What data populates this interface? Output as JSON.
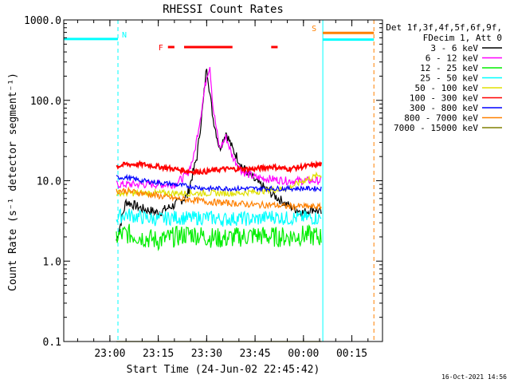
{
  "chart_data": {
    "type": "line",
    "title": "RHESSI Count Rates",
    "xlabel": "Start Time (24-Jun-02 22:45:42)",
    "ylabel": "Count Rate (s⁻¹ detector segment⁻¹)",
    "y_scale": "log",
    "ylim": [
      0.1,
      1000.0
    ],
    "yticks": [
      "0.1",
      "1.0",
      "10.0",
      "100.0",
      "1000.0"
    ],
    "xlim": [
      "22:45:42",
      "00:24:30"
    ],
    "xticks": [
      "23:00",
      "23:15",
      "23:30",
      "23:45",
      "00:00",
      "00:15"
    ],
    "timestamp": "16-Oct-2021 14:56",
    "legend": {
      "position": "right",
      "header_line1": "Det 1f,3f,4f,5f,6f,9f,",
      "header_line2": "FDecim 1, Att 0",
      "entries": [
        {
          "label": "3 - 6 keV",
          "color": "#000000"
        },
        {
          "label": "6 - 12 keV",
          "color": "#ff00ff"
        },
        {
          "label": "12 - 25 keV",
          "color": "#00ee00"
        },
        {
          "label": "25 - 50 keV",
          "color": "#00ffff"
        },
        {
          "label": "50 - 100 keV",
          "color": "#e0e000"
        },
        {
          "label": "100 - 300 keV",
          "color": "#ff0000"
        },
        {
          "label": "300 - 800 keV",
          "color": "#0000ff"
        },
        {
          "label": "800 - 7000 keV",
          "color": "#ff8000"
        },
        {
          "label": "7000 - 15000 keV",
          "color": "#808000"
        }
      ]
    },
    "annotations": [
      {
        "label": "N",
        "color": "#00ffff",
        "x_start": "22:45:42",
        "x_end": "23:02:30",
        "y": 580
      },
      {
        "label": "S",
        "color": "#ff8000",
        "x_start": "00:06:00",
        "x_end": "00:21:50",
        "y": 690
      },
      {
        "label": "",
        "color": "#00ffff",
        "x_start": "00:06:00",
        "x_end": "00:21:50",
        "y": 570
      },
      {
        "label": "F",
        "color": "#ff0000",
        "segments": [
          [
            "23:18:00",
            "23:20:00"
          ],
          [
            "23:23:00",
            "23:38:00"
          ],
          [
            "23:50:00",
            "23:52:00"
          ]
        ],
        "y": 460
      }
    ],
    "vertical_markers": [
      {
        "x": "23:02:30",
        "color": "#00ffff",
        "style": "dashed"
      },
      {
        "x": "00:06:00",
        "color": "#00ffff",
        "style": "solid"
      },
      {
        "x": "00:21:50",
        "color": "#ff8000",
        "style": "dashed"
      }
    ],
    "series": [
      {
        "name": "3 - 6 keV",
        "color": "#000000",
        "x": [
          "23:02:00",
          "23:05:00",
          "23:10:00",
          "23:15:00",
          "23:20:00",
          "23:24:00",
          "23:27:00",
          "23:29:00",
          "23:30:00",
          "23:31:00",
          "23:32:00",
          "23:34:00",
          "23:36:00",
          "23:38:00",
          "23:41:00",
          "23:45:00",
          "23:50:00",
          "23:55:00",
          "00:00:00",
          "00:03:00",
          "00:05:30"
        ],
        "y": [
          1.8,
          5.5,
          4.5,
          4.0,
          5.0,
          6.5,
          20,
          100,
          270,
          120,
          60,
          25,
          40,
          25,
          15,
          10,
          7,
          5,
          4,
          4.5,
          4
        ]
      },
      {
        "name": "6 - 12 keV",
        "color": "#ff00ff",
        "x": [
          "23:02:00",
          "23:10:00",
          "23:20:00",
          "23:24:00",
          "23:26:00",
          "23:28:00",
          "23:30:00",
          "23:31:00",
          "23:32:00",
          "23:34:00",
          "23:36:00",
          "23:38:00",
          "23:41:00",
          "23:45:00",
          "23:55:00",
          "00:05:30"
        ],
        "y": [
          9,
          9,
          9,
          12,
          20,
          60,
          200,
          270,
          80,
          25,
          35,
          20,
          13,
          11,
          10,
          10
        ]
      },
      {
        "name": "12 - 25 keV",
        "color": "#00ee00",
        "x": [
          "23:02:00",
          "23:05:00",
          "23:10:00",
          "23:15:00",
          "23:20:00",
          "23:25:00",
          "23:30:00",
          "23:35:00",
          "23:40:00",
          "23:45:00",
          "23:50:00",
          "23:55:00",
          "00:00:00",
          "00:05:30"
        ],
        "y": [
          2.0,
          2.2,
          2.0,
          1.8,
          2.0,
          2.2,
          2.0,
          1.9,
          2.0,
          2.1,
          2.0,
          2.0,
          2.1,
          2.0
        ]
      },
      {
        "name": "25 - 50 keV",
        "color": "#00ffff",
        "x": [
          "23:02:00",
          "23:05:00",
          "23:10:00",
          "23:15:00",
          "23:20:00",
          "23:25:00",
          "23:30:00",
          "23:35:00",
          "23:40:00",
          "23:45:00",
          "23:50:00",
          "23:55:00",
          "00:00:00",
          "00:05:30"
        ],
        "y": [
          3.5,
          3.8,
          3.5,
          3.3,
          3.5,
          3.4,
          3.5,
          3.3,
          3.4,
          3.3,
          3.6,
          3.4,
          3.5,
          3.4
        ]
      },
      {
        "name": "50 - 100 keV",
        "color": "#e0e000",
        "x": [
          "23:02:00",
          "23:20:00",
          "23:40:00",
          "23:55:00",
          "00:00:00",
          "00:05:30"
        ],
        "y": [
          7,
          7,
          7,
          8,
          10,
          12
        ]
      },
      {
        "name": "100 - 300 keV",
        "color": "#ff0000",
        "x": [
          "23:02:00",
          "23:05:00",
          "23:10:00",
          "23:15:00",
          "23:20:00",
          "23:25:00",
          "23:30:00",
          "23:35:00",
          "23:40:00",
          "23:45:00",
          "23:50:00",
          "23:55:00",
          "00:00:00",
          "00:05:30"
        ],
        "y": [
          15,
          16,
          16,
          15,
          14,
          13,
          13,
          14,
          14,
          14,
          15,
          14,
          15,
          16
        ]
      },
      {
        "name": "300 - 800 keV",
        "color": "#0000ff",
        "x": [
          "23:02:00",
          "23:05:00",
          "23:10:00",
          "23:15:00",
          "23:20:00",
          "23:25:00",
          "23:30:00",
          "23:35:00",
          "23:40:00",
          "23:45:00",
          "23:50:00",
          "23:55:00",
          "00:00:00",
          "00:05:30"
        ],
        "y": [
          11,
          11,
          10,
          9.5,
          9,
          8.5,
          8,
          8,
          8,
          8,
          8,
          8,
          8,
          8
        ]
      },
      {
        "name": "800 - 7000 keV",
        "color": "#ff8000",
        "x": [
          "23:02:00",
          "23:05:00",
          "23:10:00",
          "23:15:00",
          "23:20:00",
          "23:25:00",
          "23:30:00",
          "23:35:00",
          "23:40:00",
          "23:45:00",
          "23:50:00",
          "23:55:00",
          "00:00:00",
          "00:05:30"
        ],
        "y": [
          7.5,
          7.5,
          7,
          6.5,
          6,
          5.8,
          5.5,
          5.3,
          5.2,
          5.0,
          5.0,
          4.8,
          4.8,
          4.7
        ]
      },
      {
        "name": "7000 - 15000 keV",
        "color": "#808000",
        "x": [
          "23:02:00",
          "00:05:30"
        ],
        "y": [
          0.1,
          0.1
        ]
      }
    ]
  }
}
